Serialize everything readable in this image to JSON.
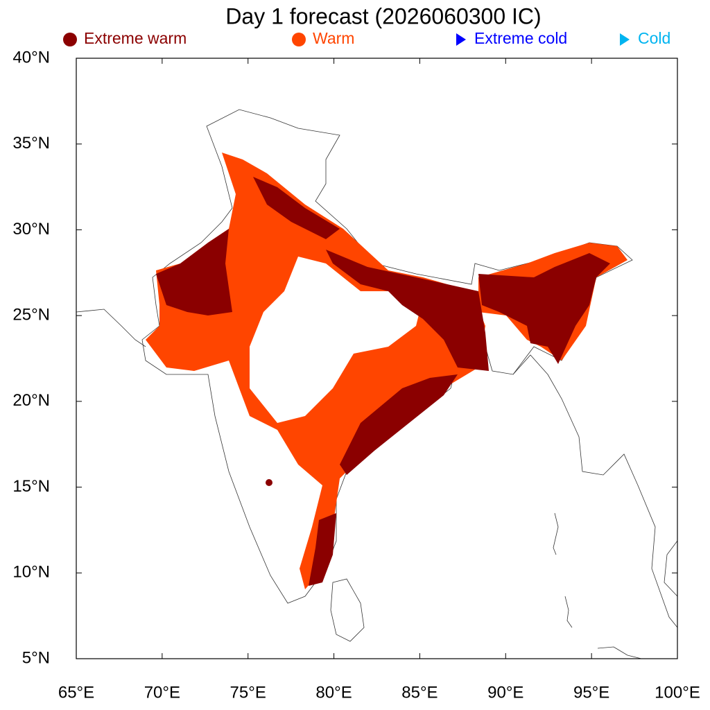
{
  "map": {
    "title": "Day 1 forecast (2026060300 IC)",
    "legend": [
      {
        "label": "Extreme warm",
        "color": "#8b0000",
        "marker": "circle"
      },
      {
        "label": "Warm",
        "color": "#ff4500",
        "marker": "circle"
      },
      {
        "label": "Extreme cold",
        "color": "#0000ff",
        "marker": "triangle"
      },
      {
        "label": "Cold",
        "color": "#00b4f0",
        "marker": "triangle"
      }
    ],
    "xlim": [
      65,
      100
    ],
    "ylim": [
      5,
      40
    ],
    "xticks": [
      {
        "value": 65,
        "label": "65°E"
      },
      {
        "value": 70,
        "label": "70°E"
      },
      {
        "value": 75,
        "label": "75°E"
      },
      {
        "value": 80,
        "label": "80°E"
      },
      {
        "value": 85,
        "label": "85°E"
      },
      {
        "value": 90,
        "label": "90°E"
      },
      {
        "value": 95,
        "label": "95°E"
      },
      {
        "value": 100,
        "label": "100°E"
      }
    ],
    "yticks": [
      {
        "value": 5,
        "label": "5°N"
      },
      {
        "value": 10,
        "label": "10°N"
      },
      {
        "value": 15,
        "label": "15°N"
      },
      {
        "value": 20,
        "label": "20°N"
      },
      {
        "value": 25,
        "label": "25°N"
      },
      {
        "value": 30,
        "label": "30°N"
      },
      {
        "value": 35,
        "label": "35°N"
      },
      {
        "value": 40,
        "label": "40°N"
      }
    ]
  }
}
